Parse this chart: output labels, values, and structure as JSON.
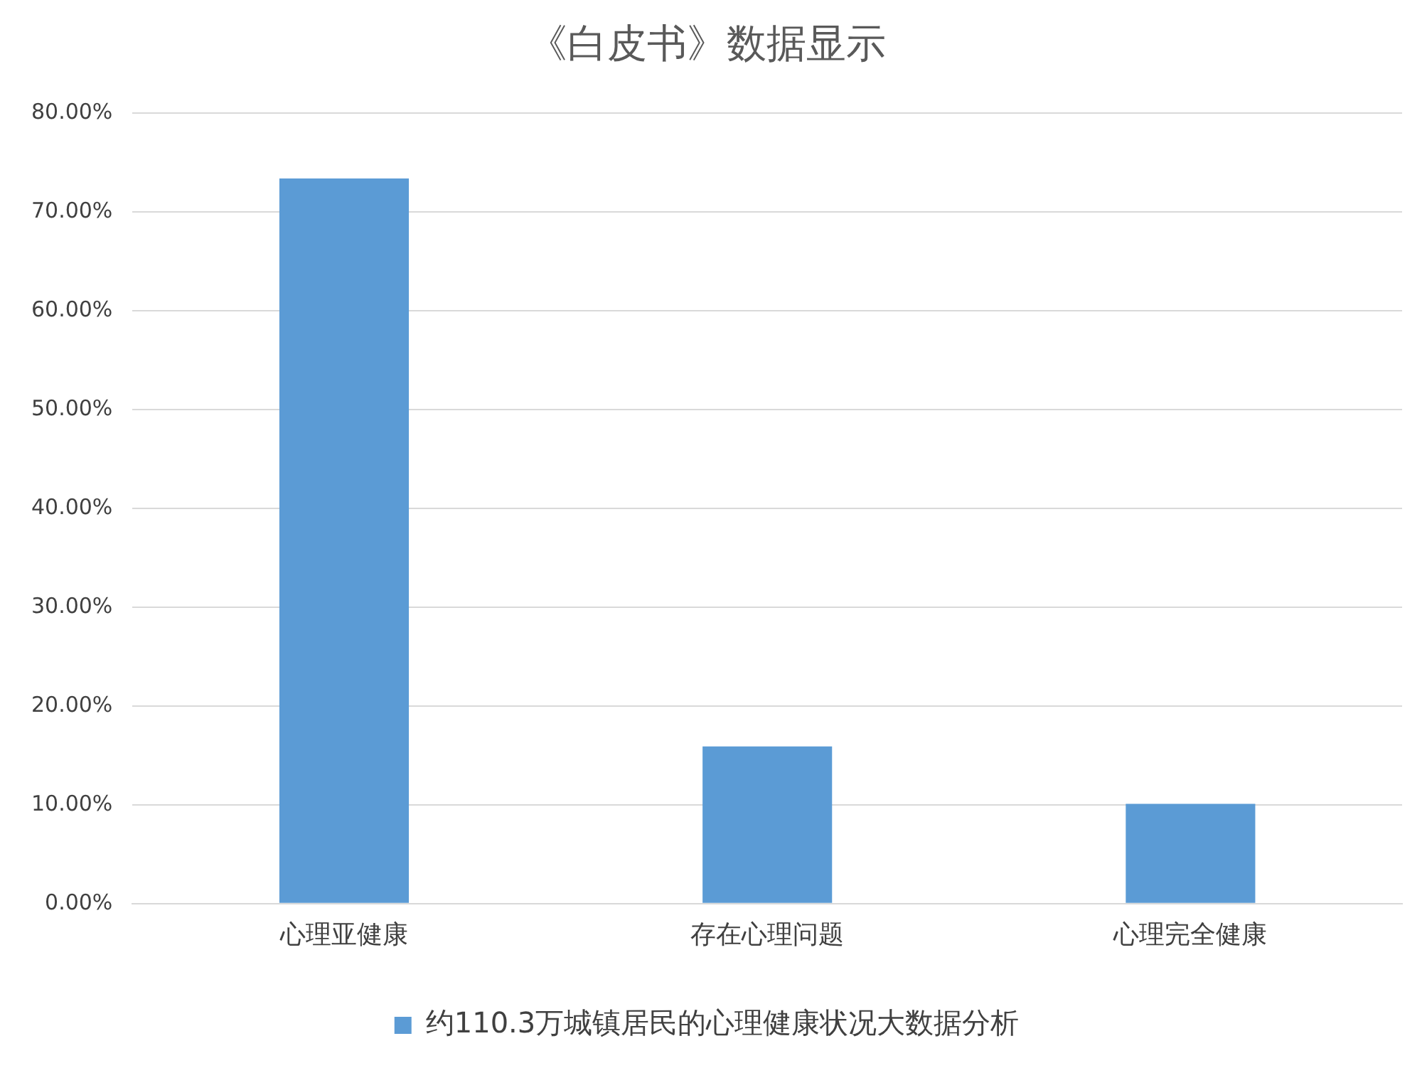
{
  "chart_data": {
    "type": "bar",
    "title": "《白皮书》数据显示",
    "categories": [
      "心理亚健康",
      "存在心理问题",
      "心理完全健康"
    ],
    "series": [
      {
        "name": "约110.3万城镇居民的心理健康状况大数据分析",
        "color": "#5b9bd5",
        "values": [
          73.4,
          15.9,
          10.1
        ]
      }
    ],
    "ylim": [
      0,
      80
    ],
    "yticks": [
      {
        "value": 0,
        "label": "0.00%"
      },
      {
        "value": 10,
        "label": "10.00%"
      },
      {
        "value": 20,
        "label": "20.00%"
      },
      {
        "value": 30,
        "label": "30.00%"
      },
      {
        "value": 40,
        "label": "40.00%"
      },
      {
        "value": 50,
        "label": "50.00%"
      },
      {
        "value": 60,
        "label": "60.00%"
      },
      {
        "value": 70,
        "label": "70.00%"
      },
      {
        "value": 80,
        "label": "80.00%"
      }
    ],
    "grid": "y",
    "legend": "bottom"
  }
}
